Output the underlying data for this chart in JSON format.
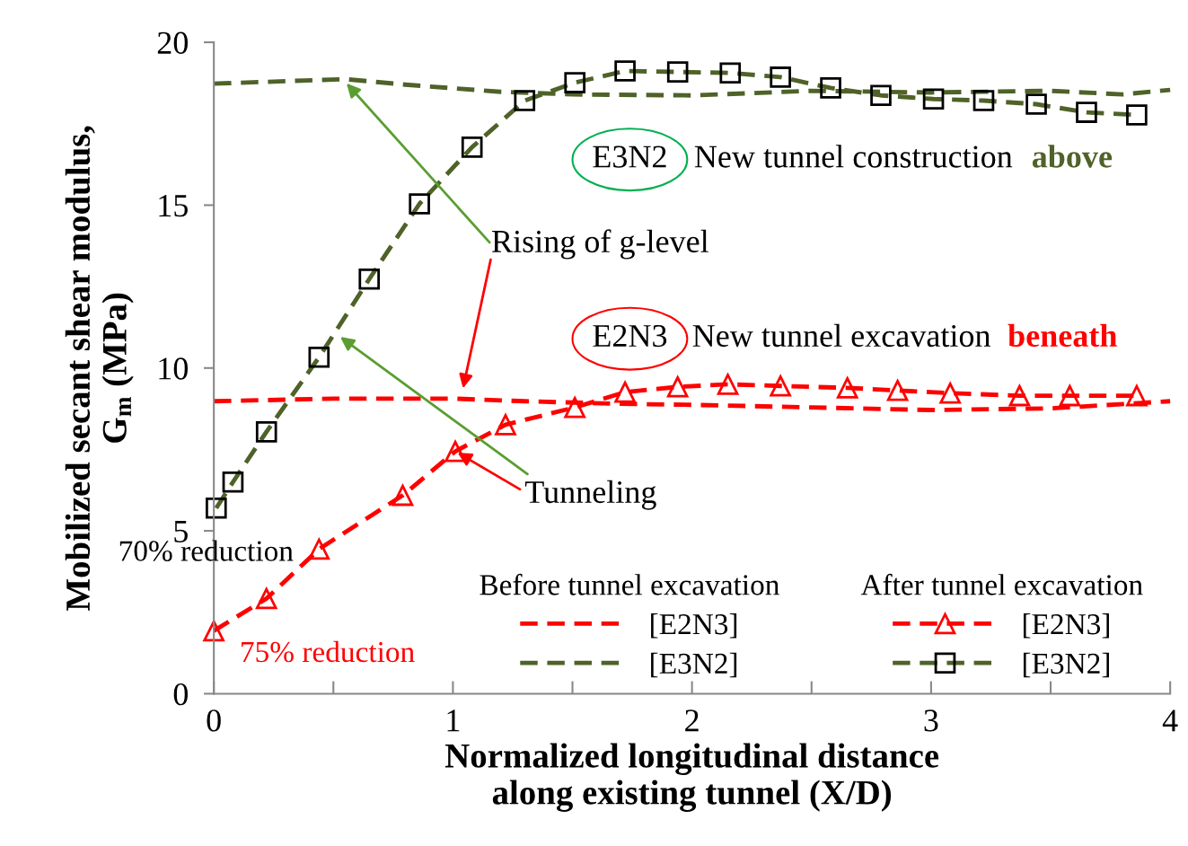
{
  "chart_data": {
    "type": "line",
    "xlabel": "Normalized longitudinal distance\nalong existing tunnel (X/D)",
    "ylabel": "Mobilized secant shear modulus,\nG$_{m}$ (MPa)",
    "xlim": [
      0,
      4
    ],
    "ylim": [
      0,
      20
    ],
    "xticks": [
      0,
      {
        "value": 0.5,
        "label": null
      },
      1,
      {
        "value": 1.5,
        "label": null
      },
      2,
      {
        "value": 2.5,
        "label": null
      },
      3,
      {
        "value": 3.5,
        "label": null
      },
      4
    ],
    "yticks": [
      0,
      5,
      10,
      15,
      20
    ],
    "grid": false,
    "legend": "bottom right",
    "line_style": "dashed",
    "annotations": [
      "Before tunnel excavation",
      "After tunnel excavation",
      "E3N2",
      "New tunnel construction",
      "above",
      "E2N3",
      "New tunnel excavation",
      "beneath",
      "Rising of g-level",
      {
        "text": "Tunneling",
        "x": 1.01,
        "y": 7.44
      },
      "70% reduction",
      "75% reduction"
    ],
    "series": [
      {
        "name": "[E2N3]",
        "color": "#ff0000",
        "marker": "none",
        "x": [
          0,
          0.5,
          1,
          1.3,
          1.7,
          2,
          2.5,
          3,
          3.5,
          4
        ],
        "values": [
          8.98,
          9.06,
          9.06,
          8.98,
          8.9,
          8.87,
          8.79,
          8.71,
          8.76,
          8.98
        ]
      },
      {
        "name": "[E3N2]",
        "color": "#4f6228",
        "marker": "none",
        "x": [
          0,
          0.55,
          0.8,
          1.2,
          1.5,
          2,
          2.5,
          3,
          3.5,
          3.8,
          4
        ],
        "values": [
          18.73,
          18.87,
          18.7,
          18.48,
          18.4,
          18.37,
          18.51,
          18.46,
          18.51,
          18.4,
          18.54
        ]
      },
      {
        "name": "[E2N3]",
        "color": "#ff0000",
        "marker": "triangle",
        "x": [
          0,
          0.22,
          0.44,
          0.79,
          1.01,
          1.22,
          1.51,
          1.72,
          1.94,
          2.15,
          2.37,
          2.65,
          2.86,
          3.08,
          3.37,
          3.58,
          3.86
        ],
        "values": [
          1.93,
          2.92,
          4.44,
          6.09,
          7.44,
          8.26,
          8.79,
          9.26,
          9.42,
          9.5,
          9.45,
          9.39,
          9.31,
          9.23,
          9.15,
          9.15,
          9.15
        ]
      },
      {
        "name": "[E3N2]",
        "color": "#4f6228",
        "marker": "square",
        "x": [
          0.01,
          0.08,
          0.22,
          0.44,
          0.65,
          0.86,
          1.08,
          1.3,
          1.51,
          1.72,
          1.94,
          2.16,
          2.37,
          2.58,
          2.79,
          3.01,
          3.22,
          3.44,
          3.65,
          3.86
        ],
        "values": [
          5.7,
          6.5,
          8.04,
          10.33,
          12.73,
          15.04,
          16.78,
          18.21,
          18.76,
          19.12,
          19.09,
          19.06,
          18.93,
          18.6,
          18.37,
          18.26,
          18.21,
          18.1,
          17.85,
          17.77
        ]
      }
    ]
  }
}
